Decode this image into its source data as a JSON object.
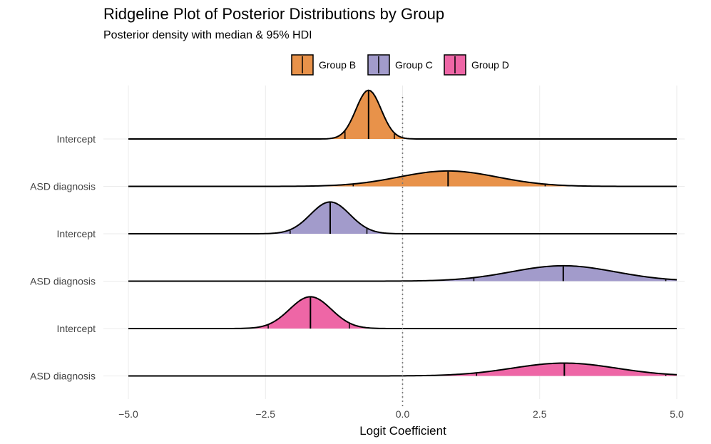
{
  "chart_data": {
    "type": "ridgeline",
    "title": "Ridgeline Plot of Posterior Distributions by Group",
    "subtitle": "Posterior density with median & 95% HDI",
    "xlabel": "Logit Coefficient",
    "ylabel": "",
    "xlim": [
      -5.0,
      5.0
    ],
    "x_ticks": [
      -5.0,
      -2.5,
      0.0,
      2.5,
      5.0
    ],
    "x_tick_labels": [
      "−5.0",
      "−2.5",
      "0.0",
      "2.5",
      "5.0"
    ],
    "reference_line": {
      "x": 0.0,
      "style": "dotted"
    },
    "legend": {
      "position": "top",
      "entries": [
        {
          "label": "Group B",
          "color": "#E8924A"
        },
        {
          "label": "Group C",
          "color": "#A29BCB"
        },
        {
          "label": "Group D",
          "color": "#EE66A6"
        }
      ]
    },
    "rows": [
      {
        "label": "Intercept",
        "group": "Group B",
        "median": -0.62,
        "hdi": [
          -1.05,
          -0.15
        ],
        "sd": 0.23,
        "peak": 0.95
      },
      {
        "label": "ASD diagnosis",
        "group": "Group B",
        "median": 0.83,
        "hdi": [
          -0.9,
          2.6
        ],
        "sd": 0.9,
        "peak": 0.3
      },
      {
        "label": "Intercept",
        "group": "Group C",
        "median": -1.32,
        "hdi": [
          -2.05,
          -0.65
        ],
        "sd": 0.36,
        "peak": 0.62
      },
      {
        "label": "ASD diagnosis",
        "group": "Group C",
        "median": 2.93,
        "hdi": [
          1.3,
          4.8
        ],
        "sd": 0.95,
        "peak": 0.3
      },
      {
        "label": "Intercept",
        "group": "Group D",
        "median": -1.68,
        "hdi": [
          -2.45,
          -0.97
        ],
        "sd": 0.38,
        "peak": 0.62
      },
      {
        "label": "ASD diagnosis",
        "group": "Group D",
        "median": 2.95,
        "hdi": [
          1.35,
          4.8
        ],
        "sd": 0.95,
        "peak": 0.25
      }
    ]
  }
}
